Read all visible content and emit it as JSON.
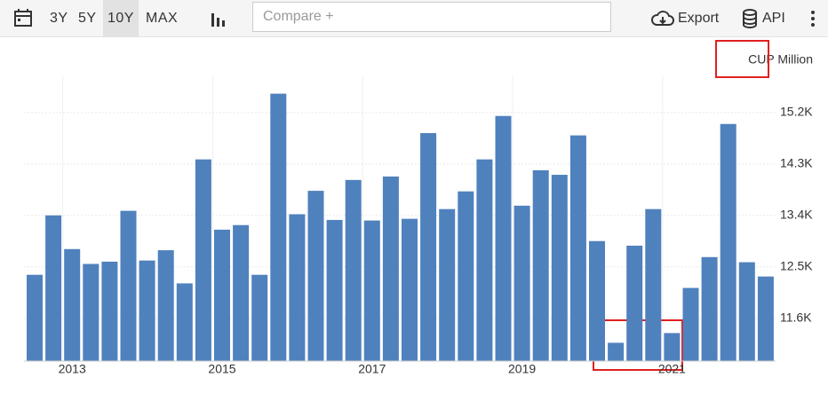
{
  "toolbar": {
    "ranges": [
      "3Y",
      "5Y",
      "10Y",
      "MAX"
    ],
    "compare": "Compare +",
    "export": "Export",
    "api": "API"
  },
  "chart_data": {
    "type": "bar",
    "unit_label": "CUP Million",
    "categories": [
      null,
      null,
      "2013",
      null,
      null,
      null,
      null,
      null,
      null,
      null,
      "2015",
      null,
      null,
      null,
      null,
      null,
      null,
      null,
      "2017",
      null,
      null,
      null,
      null,
      null,
      null,
      null,
      "2019",
      null,
      null,
      null,
      null,
      null,
      null,
      null,
      "2021",
      null,
      null,
      null,
      null,
      null
    ],
    "values": [
      12360,
      13400,
      12810,
      12550,
      12590,
      13480,
      12610,
      12790,
      12210,
      14380,
      13150,
      13230,
      12360,
      15530,
      13420,
      13830,
      13320,
      14020,
      13310,
      14080,
      13340,
      14840,
      13510,
      13820,
      14380,
      15140,
      13570,
      14190,
      14110,
      14800,
      12950,
      11170,
      12870,
      13510,
      11340,
      12130,
      12670,
      15000,
      12580,
      12330
    ],
    "color": "#4f81bd",
    "ylim": [
      10850,
      15850
    ],
    "yticks": [
      {
        "value": 11600,
        "label": "11.6K"
      },
      {
        "value": 12500,
        "label": "12.5K"
      },
      {
        "value": 13400,
        "label": "13.4K"
      },
      {
        "value": 14300,
        "label": "14.3K"
      },
      {
        "value": 15200,
        "label": "15.2K"
      }
    ],
    "grid": true
  }
}
